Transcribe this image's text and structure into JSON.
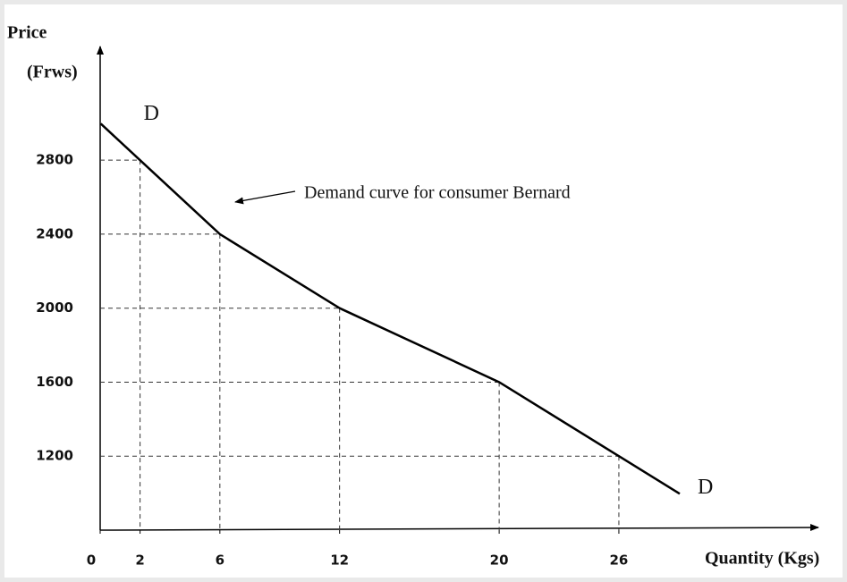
{
  "chart_data": {
    "type": "line",
    "ylabel": "Price",
    "ylabel_unit": "(Frws)",
    "xlabel": "Quantity (Kgs)",
    "annotation": "Demand curve for consumer Bernard",
    "curve_labels": [
      "D",
      "D"
    ],
    "x": [
      2,
      6,
      12,
      20,
      26
    ],
    "series": [
      {
        "color": "#000000",
        "values": [
          2800,
          2400,
          2000,
          1600,
          1200
        ]
      }
    ],
    "xlim": [
      0,
      36
    ],
    "xticks": [
      0,
      2,
      6,
      12,
      20,
      26
    ],
    "ylim": [
      800,
      3400
    ],
    "yticks": [
      1200,
      1600,
      2000,
      2400,
      2800
    ],
    "guides": true
  }
}
